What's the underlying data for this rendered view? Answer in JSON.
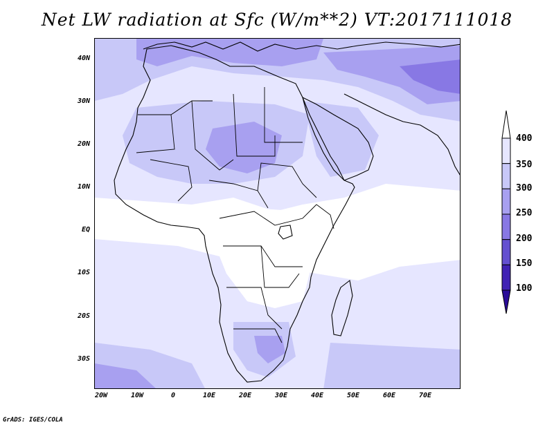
{
  "title": "Net LW radiation at Sfc (W/m**2) VT:2017111018",
  "footer": "GrADS: IGES/COLA",
  "y_ticks": [
    "40N",
    "30N",
    "20N",
    "10N",
    "EQ",
    "10S",
    "20S",
    "30S"
  ],
  "x_ticks": [
    "20W",
    "10W",
    "0",
    "10E",
    "20E",
    "30E",
    "40E",
    "50E",
    "60E",
    "70E"
  ],
  "colorbar": {
    "levels": [
      "400",
      "350",
      "300",
      "250",
      "200",
      "150",
      "100"
    ],
    "colors": [
      "#ffffff",
      "#e6e6ff",
      "#c8c8f8",
      "#a8a0f0",
      "#8878e4",
      "#6450d0",
      "#4022b4",
      "#2a0c98"
    ]
  },
  "map": {
    "extent_lon": [
      -22,
      80
    ],
    "extent_lat": [
      -37,
      45
    ]
  }
}
